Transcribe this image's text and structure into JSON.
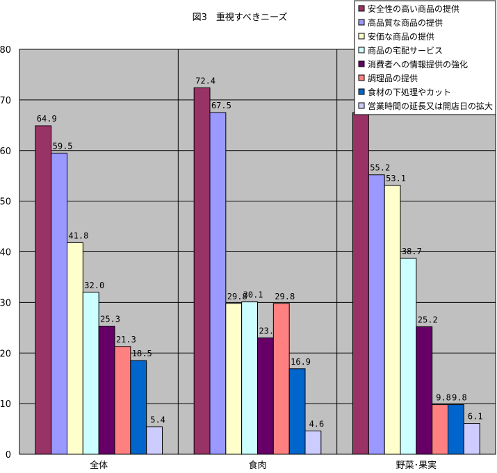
{
  "chart_data": {
    "type": "bar",
    "title": "図3　重視すべきニーズ",
    "xlabel": "",
    "ylabel": "",
    "ylim": [
      0,
      80
    ],
    "yticks": [
      0,
      10,
      20,
      30,
      40,
      50,
      60,
      70,
      80
    ],
    "grid": true,
    "legend_position": "top-right",
    "categories": [
      "全体",
      "食肉",
      "野菜･果実"
    ],
    "series": [
      {
        "name": "安全性の高い商品の提供",
        "color": "#993366",
        "values": [
          64.9,
          72.4,
          67.5
        ]
      },
      {
        "name": "高品質な商品の提供",
        "color": "#9999FF",
        "values": [
          59.5,
          67.5,
          55.2
        ]
      },
      {
        "name": "安価な商品の提供",
        "color": "#FFFFCC",
        "values": [
          41.8,
          29.8,
          53.1
        ]
      },
      {
        "name": "商品の宅配サービス",
        "color": "#CCFFFF",
        "values": [
          32.0,
          30.1,
          38.7
        ]
      },
      {
        "name": "消費者への情報提供の強化",
        "color": "#660066",
        "values": [
          25.3,
          23.0,
          25.2
        ]
      },
      {
        "name": "調理品の提供",
        "color": "#FF8080",
        "values": [
          21.3,
          29.8,
          9.8
        ]
      },
      {
        "name": "食材の下処理やカット",
        "color": "#0066CC",
        "values": [
          18.5,
          16.9,
          9.8
        ]
      },
      {
        "name": "営業時間の延長又は開店日の拡大",
        "color": "#CCCCFF",
        "values": [
          5.4,
          4.6,
          6.1
        ]
      }
    ],
    "plot_background": "#C0C0C0"
  }
}
